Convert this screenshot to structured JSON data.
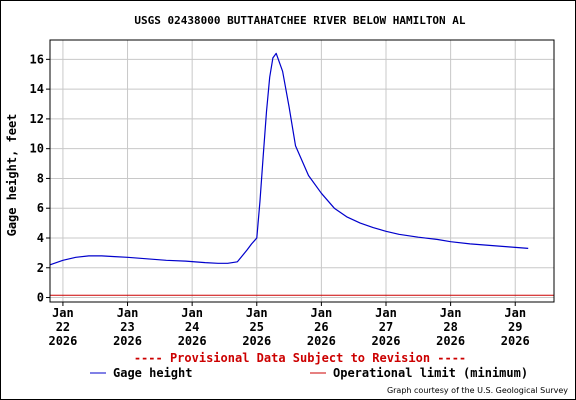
{
  "chart_data": {
    "type": "line",
    "title": "USGS 02438000 BUTTAHATCHEE RIVER BELOW HAMILTON AL",
    "ylabel": "Gage height, feet",
    "xlabel": "",
    "ylim": [
      -0.3,
      17.3
    ],
    "yticks": [
      0,
      2,
      4,
      6,
      8,
      10,
      12,
      14,
      16
    ],
    "xlim": [
      21.8,
      29.6
    ],
    "xticks": [
      {
        "pos": 22,
        "lines": [
          "Jan",
          "22",
          "2026"
        ]
      },
      {
        "pos": 23,
        "lines": [
          "Jan",
          "23",
          "2026"
        ]
      },
      {
        "pos": 24,
        "lines": [
          "Jan",
          "24",
          "2026"
        ]
      },
      {
        "pos": 25,
        "lines": [
          "Jan",
          "25",
          "2026"
        ]
      },
      {
        "pos": 26,
        "lines": [
          "Jan",
          "26",
          "2026"
        ]
      },
      {
        "pos": 27,
        "lines": [
          "Jan",
          "27",
          "2026"
        ]
      },
      {
        "pos": 28,
        "lines": [
          "Jan",
          "28",
          "2026"
        ]
      },
      {
        "pos": 29,
        "lines": [
          "Jan",
          "29",
          "2026"
        ]
      }
    ],
    "grid": true,
    "series": [
      {
        "name": "Gage height",
        "color": "#0000cc",
        "x": [
          21.8,
          22.0,
          22.2,
          22.4,
          22.6,
          22.8,
          23.0,
          23.3,
          23.6,
          23.9,
          24.2,
          24.4,
          24.55,
          24.7,
          24.85,
          24.92,
          25.0,
          25.05,
          25.1,
          25.15,
          25.2,
          25.25,
          25.3,
          25.4,
          25.5,
          25.6,
          25.8,
          26.0,
          26.2,
          26.4,
          26.6,
          26.8,
          27.0,
          27.2,
          27.5,
          27.8,
          28.0,
          28.3,
          28.6,
          28.9,
          29.2
        ],
        "y": [
          2.2,
          2.5,
          2.7,
          2.8,
          2.8,
          2.75,
          2.7,
          2.6,
          2.5,
          2.45,
          2.35,
          2.3,
          2.3,
          2.4,
          3.2,
          3.6,
          4.0,
          6.5,
          9.5,
          12.5,
          14.8,
          16.1,
          16.4,
          15.2,
          12.8,
          10.2,
          8.2,
          7.0,
          6.0,
          5.4,
          5.0,
          4.7,
          4.45,
          4.25,
          4.05,
          3.9,
          3.75,
          3.6,
          3.5,
          3.4,
          3.3
        ]
      }
    ],
    "reference_lines": [
      {
        "name": "Operational limit (minimum)",
        "value": 0.15,
        "color": "#cc0000"
      }
    ],
    "legend_placement": "bottom"
  },
  "notes": {
    "provisional": "---- Provisional Data Subject to Revision ----",
    "courtesy": "Graph courtesy of the U.S. Geological Survey"
  },
  "colors": {
    "grid": "#c8c8c8",
    "provisional": "#cc0000"
  }
}
